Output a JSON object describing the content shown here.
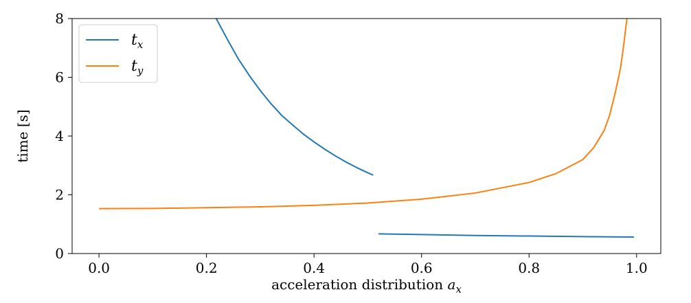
{
  "chart_data": {
    "type": "line",
    "xlabel": "acceleration distribution ",
    "xlabel_var": "a",
    "xlabel_sub": "x",
    "ylabel": "time [s]",
    "xlim": [
      -0.05,
      1.045
    ],
    "ylim": [
      0,
      8
    ],
    "xticks": [
      0.0,
      0.2,
      0.4,
      0.6,
      0.8,
      1.0
    ],
    "xtick_labels": [
      "0.0",
      "0.2",
      "0.4",
      "0.6",
      "0.8",
      "1.0"
    ],
    "yticks": [
      0,
      2,
      4,
      6,
      8
    ],
    "ytick_labels": [
      "0",
      "2",
      "4",
      "6",
      "8"
    ],
    "grid": false,
    "legend_position": "top-left",
    "series": [
      {
        "name": "t_x",
        "legend_base": "t",
        "legend_sub": "x",
        "color": "#1f77b4",
        "segments": [
          [
            [
              0.218,
              8.0
            ],
            [
              0.24,
              7.25
            ],
            [
              0.26,
              6.6
            ],
            [
              0.28,
              6.05
            ],
            [
              0.3,
              5.55
            ],
            [
              0.32,
              5.1
            ],
            [
              0.34,
              4.7
            ],
            [
              0.36,
              4.38
            ],
            [
              0.38,
              4.07
            ],
            [
              0.4,
              3.8
            ],
            [
              0.42,
              3.55
            ],
            [
              0.44,
              3.32
            ],
            [
              0.46,
              3.11
            ],
            [
              0.48,
              2.92
            ],
            [
              0.5,
              2.75
            ],
            [
              0.51,
              2.67
            ]
          ],
          [
            [
              0.52,
              0.67
            ],
            [
              0.6,
              0.645
            ],
            [
              0.7,
              0.615
            ],
            [
              0.8,
              0.595
            ],
            [
              0.9,
              0.575
            ],
            [
              0.995,
              0.56
            ]
          ]
        ]
      },
      {
        "name": "t_y",
        "legend_base": "t",
        "legend_sub": "y",
        "color": "#ff7f0e",
        "segments": [
          [
            [
              0.0,
              1.53
            ],
            [
              0.1,
              1.535
            ],
            [
              0.2,
              1.56
            ],
            [
              0.3,
              1.59
            ],
            [
              0.4,
              1.64
            ],
            [
              0.5,
              1.72
            ],
            [
              0.6,
              1.85
            ],
            [
              0.7,
              2.06
            ],
            [
              0.8,
              2.42
            ],
            [
              0.85,
              2.72
            ],
            [
              0.9,
              3.2
            ],
            [
              0.92,
              3.6
            ],
            [
              0.94,
              4.2
            ],
            [
              0.95,
              4.72
            ],
            [
              0.96,
              5.45
            ],
            [
              0.97,
              6.3
            ],
            [
              0.975,
              6.95
            ],
            [
              0.98,
              7.7
            ],
            [
              0.982,
              8.0
            ]
          ]
        ]
      }
    ]
  }
}
